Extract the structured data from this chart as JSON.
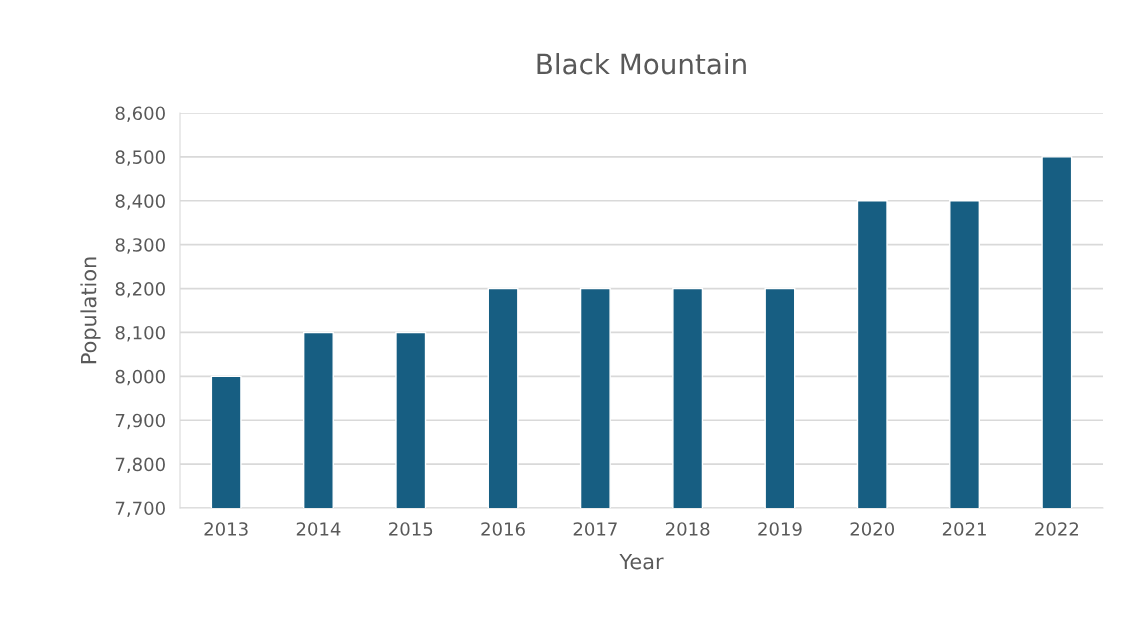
{
  "chart_data": {
    "type": "bar",
    "title": "Black Mountain",
    "xlabel": "Year",
    "ylabel": "Population",
    "categories": [
      "2013",
      "2014",
      "2015",
      "2016",
      "2017",
      "2018",
      "2019",
      "2020",
      "2021",
      "2022"
    ],
    "values": [
      8000,
      8100,
      8100,
      8200,
      8200,
      8200,
      8200,
      8400,
      8400,
      8500
    ],
    "color": "#175e82",
    "ylim": [
      7700,
      8600
    ],
    "yticks": [
      {
        "value": 7700,
        "label": "7,700"
      },
      {
        "value": 7800,
        "label": "7,800"
      },
      {
        "value": 7900,
        "label": "7,900"
      },
      {
        "value": 8000,
        "label": "8,000"
      },
      {
        "value": 8100,
        "label": "8,100"
      },
      {
        "value": 8200,
        "label": "8,200"
      },
      {
        "value": 8300,
        "label": "8,300"
      },
      {
        "value": 8400,
        "label": "8,400"
      },
      {
        "value": 8500,
        "label": "8,500"
      },
      {
        "value": 8600,
        "label": "8,600"
      }
    ],
    "grid": "y"
  }
}
